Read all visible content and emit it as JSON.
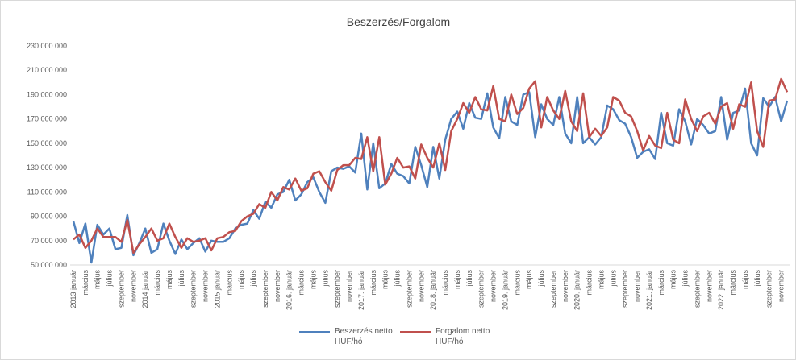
{
  "chart_data": {
    "type": "line",
    "title": "Beszerzés/Forgalom",
    "categories": [
      "2013 január",
      null,
      "március",
      null,
      "május",
      null,
      "július",
      null,
      "szeptember",
      null,
      "november",
      null,
      "2014 január",
      null,
      "március",
      null,
      "május",
      null,
      "július",
      null,
      "szeptember",
      null,
      "november",
      null,
      "2015 január",
      null,
      "március",
      null,
      "május",
      null,
      "július",
      null,
      "szeptember",
      null,
      "november",
      null,
      "2016. január",
      null,
      "március",
      null,
      "május",
      null,
      "július",
      null,
      "szeptember",
      null,
      "november",
      null,
      "2017. január",
      null,
      "március",
      null,
      "május",
      null,
      "július",
      null,
      "szeptember",
      null,
      "november",
      null,
      "2018. január",
      null,
      "március",
      null,
      "május",
      null,
      "július",
      null,
      "szeptember",
      null,
      "november",
      null,
      "2019. január",
      null,
      "március",
      null,
      "május",
      null,
      "július",
      null,
      "szeptember",
      null,
      "november",
      null,
      "2020. január",
      null,
      "március",
      null,
      "május",
      null,
      "július",
      null,
      "szeptember",
      null,
      "november",
      null,
      "2021. január",
      null,
      "március",
      null,
      "május",
      null,
      "július",
      null,
      "szeptember",
      null,
      "november",
      null,
      "2022. január",
      null,
      "március",
      null,
      "május",
      null,
      "július",
      null,
      "szeptember",
      null,
      "november",
      null
    ],
    "series": [
      {
        "name": "Beszerzés netto HUF/hó",
        "color": "#4f81bd",
        "values": [
          86000000,
          68000000,
          84000000,
          52000000,
          83000000,
          75000000,
          80000000,
          63000000,
          64000000,
          91000000,
          58000000,
          68000000,
          80000000,
          60000000,
          63000000,
          84000000,
          70000000,
          59000000,
          71000000,
          63000000,
          68000000,
          72000000,
          61000000,
          70000000,
          69000000,
          69000000,
          72000000,
          80000000,
          83000000,
          84000000,
          95000000,
          88000000,
          102000000,
          97000000,
          108000000,
          110000000,
          120000000,
          103000000,
          108000000,
          118000000,
          122000000,
          110000000,
          101000000,
          127000000,
          130000000,
          129000000,
          131000000,
          126000000,
          158000000,
          112000000,
          150000000,
          113000000,
          117000000,
          133000000,
          125000000,
          123000000,
          117000000,
          147000000,
          132000000,
          114000000,
          147000000,
          121000000,
          153000000,
          170000000,
          176000000,
          162000000,
          183000000,
          171000000,
          170000000,
          191000000,
          163000000,
          154000000,
          188000000,
          168000000,
          165000000,
          190000000,
          192000000,
          155000000,
          182000000,
          170000000,
          165000000,
          188000000,
          158000000,
          150000000,
          188000000,
          150000000,
          155000000,
          149000000,
          155000000,
          181000000,
          178000000,
          169000000,
          166000000,
          155000000,
          138000000,
          143000000,
          145000000,
          137000000,
          175000000,
          150000000,
          148000000,
          178000000,
          168000000,
          149000000,
          170000000,
          165000000,
          158000000,
          160000000,
          188000000,
          153000000,
          175000000,
          177000000,
          195000000,
          150000000,
          140000000,
          187000000,
          180000000,
          188000000,
          168000000,
          185000000
        ]
      },
      {
        "name": "Forgalom netto HUF/hó",
        "color": "#c0504d",
        "values": [
          71000000,
          75000000,
          64000000,
          70000000,
          80000000,
          73000000,
          73000000,
          73000000,
          69000000,
          87000000,
          60000000,
          67000000,
          73000000,
          80000000,
          70000000,
          72000000,
          84000000,
          73000000,
          64000000,
          72000000,
          69000000,
          70000000,
          72000000,
          62000000,
          72000000,
          73000000,
          77000000,
          78000000,
          86000000,
          90000000,
          92000000,
          100000000,
          97000000,
          110000000,
          103000000,
          114000000,
          112000000,
          121000000,
          111000000,
          113000000,
          125000000,
          127000000,
          118000000,
          111000000,
          128000000,
          132000000,
          132000000,
          138000000,
          137000000,
          155000000,
          127000000,
          155000000,
          116000000,
          125000000,
          138000000,
          130000000,
          131000000,
          121000000,
          149000000,
          138000000,
          130000000,
          150000000,
          128000000,
          160000000,
          170000000,
          183000000,
          175000000,
          188000000,
          178000000,
          177000000,
          197000000,
          170000000,
          168000000,
          190000000,
          174000000,
          179000000,
          195000000,
          201000000,
          163000000,
          188000000,
          177000000,
          170000000,
          193000000,
          168000000,
          160000000,
          191000000,
          155000000,
          162000000,
          156000000,
          163000000,
          188000000,
          185000000,
          175000000,
          172000000,
          160000000,
          144000000,
          156000000,
          148000000,
          146000000,
          175000000,
          153000000,
          150000000,
          186000000,
          170000000,
          160000000,
          172000000,
          175000000,
          166000000,
          180000000,
          183000000,
          162000000,
          182000000,
          180000000,
          200000000,
          160000000,
          147000000,
          185000000,
          186000000,
          203000000,
          192000000
        ]
      }
    ],
    "ylim": [
      50000000,
      230000000
    ],
    "yticks": [
      {
        "value": 50000000,
        "label": "50 000 000"
      },
      {
        "value": 70000000,
        "label": "70 000 000"
      },
      {
        "value": 90000000,
        "label": "90 000 000"
      },
      {
        "value": 110000000,
        "label": "110 000 000"
      },
      {
        "value": 130000000,
        "label": "130 000 000"
      },
      {
        "value": 150000000,
        "label": "150 000 000"
      },
      {
        "value": 170000000,
        "label": "170 000 000"
      },
      {
        "value": 190000000,
        "label": "190 000 000"
      },
      {
        "value": 210000000,
        "label": "210 000 000"
      },
      {
        "value": 230000000,
        "label": "230 000 000"
      }
    ],
    "grid": false
  }
}
